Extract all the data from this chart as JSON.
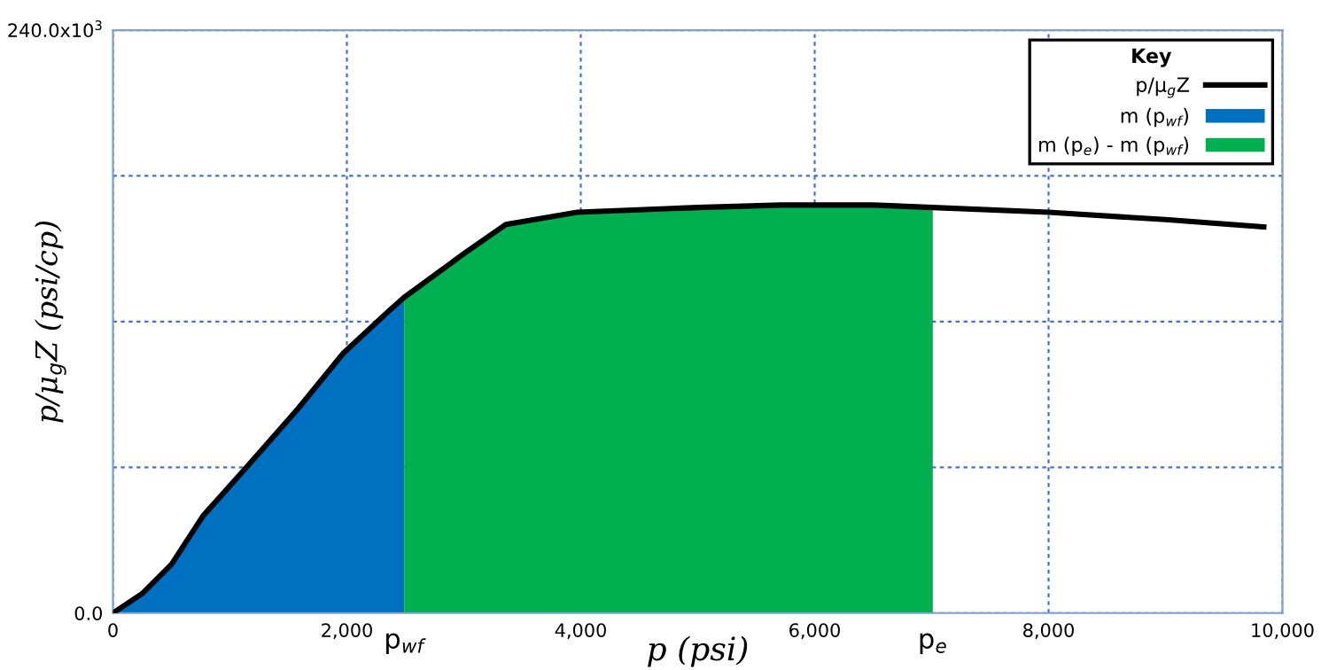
{
  "chart_data": {
    "type": "area",
    "xlabel": "p (psi)",
    "ylabel": "p/μ$_{g}$Z (psi/cp)",
    "legend_title": "Key",
    "xlim": [
      0,
      10000
    ],
    "ylim": [
      0,
      240000
    ],
    "xticks": [
      {
        "value": 0,
        "label": "0"
      },
      {
        "value": 2000,
        "label": "2,000"
      },
      {
        "value": 4000,
        "label": "4,000"
      },
      {
        "value": 6000,
        "label": "6,000"
      },
      {
        "value": 8000,
        "label": "8,000"
      },
      {
        "value": 10000,
        "label": "10,000"
      }
    ],
    "yticks": [
      {
        "value": 0,
        "label": "0.0"
      },
      {
        "value": 60000,
        "label": null
      },
      {
        "value": 120000,
        "label": null
      },
      {
        "value": 180000,
        "label": null
      },
      {
        "value": 240000,
        "label": "240.0x10$^{3}$"
      }
    ],
    "grid": true,
    "legend": "top right",
    "line_style": "solid",
    "marker": "none",
    "series": [
      {
        "name": "m (p$_{wf}$)",
        "color": "#0070c0",
        "x": [
          0,
          250,
          500,
          770,
          1160,
          1580,
          1970,
          2350,
          2490
        ],
        "values": [
          0,
          8000,
          20000,
          40000,
          61000,
          84000,
          107000,
          124000,
          130000
        ]
      },
      {
        "name": "m (p$_{e}$) - m (p$_{wf}$)",
        "color": "#00b050",
        "x": [
          2490,
          3030,
          3360,
          3970,
          5000,
          5710,
          6500,
          7010
        ],
        "values": [
          130000,
          149000,
          160000,
          165000,
          167000,
          168000,
          168000,
          167000
        ]
      },
      {
        "name": "p/μ$_{g}$Z",
        "type": "line",
        "color": "#000000",
        "x": [
          0,
          250,
          500,
          770,
          1160,
          1580,
          1970,
          2350,
          2490,
          3030,
          3360,
          3970,
          5000,
          5710,
          6500,
          7010,
          8000,
          9000,
          9840
        ],
        "values": [
          0,
          8000,
          20000,
          40000,
          61000,
          84000,
          107000,
          124000,
          130000,
          149000,
          160000,
          165000,
          167000,
          168000,
          168000,
          167000,
          165000,
          162000,
          159000
        ]
      }
    ],
    "annotations": [
      {
        "text": "p$_{wf}$",
        "x": 2490,
        "y": 0
      },
      {
        "text": "p$_{e}$",
        "x": 7010,
        "y": 0
      }
    ]
  }
}
